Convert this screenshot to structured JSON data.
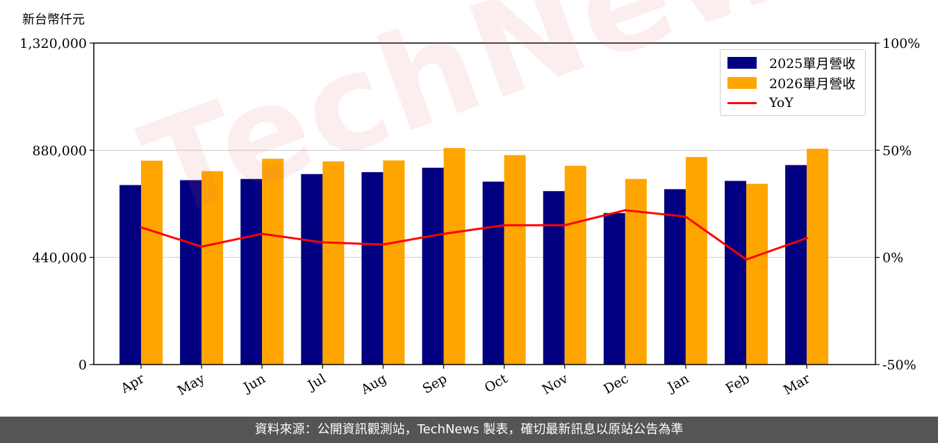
{
  "left_axis_label": "新台幣仟元",
  "footer": "資料來源：公開資訊觀測站，TechNews 製表，確切最新訊息以原站公告為準",
  "watermark": "TechNews",
  "colors": {
    "s2025": "#000080",
    "s2026": "#FFA500",
    "yoy": "#FF0000",
    "grid": "#cccccc"
  },
  "chart_data": {
    "type": "bar",
    "categories": [
      "Apr",
      "May",
      "Jun",
      "Jul",
      "Aug",
      "Sep",
      "Oct",
      "Nov",
      "Dec",
      "Jan",
      "Feb",
      "Mar"
    ],
    "series": [
      {
        "name": "2025單月營收",
        "values": [
          737000,
          757000,
          762000,
          782000,
          790000,
          808000,
          751000,
          712000,
          622000,
          720000,
          754000,
          819000
        ]
      },
      {
        "name": "2026單月營收",
        "values": [
          837000,
          794000,
          845000,
          834000,
          838000,
          889000,
          860000,
          816000,
          762000,
          852000,
          742000,
          886000
        ]
      },
      {
        "name": "YoY",
        "axis": "right",
        "values": [
          14,
          5,
          11,
          7,
          6,
          11,
          15,
          15,
          22,
          19,
          -1,
          9
        ]
      }
    ],
    "ylim": [
      0,
      1320000
    ],
    "yticks": [
      "0",
      "440,000",
      "880,000",
      "1,320,000"
    ],
    "ytick_values": [
      0,
      440000,
      880000,
      1320000
    ],
    "y2lim": [
      -50,
      100
    ],
    "y2ticks": [
      "-50%",
      "0%",
      "50%",
      "100%"
    ],
    "y2tick_values": [
      -50,
      0,
      50,
      100
    ],
    "legend": [
      "2025單月營收",
      "2026單月營收",
      "YoY"
    ],
    "legend_position": "top-right",
    "grid": "horizontal"
  }
}
